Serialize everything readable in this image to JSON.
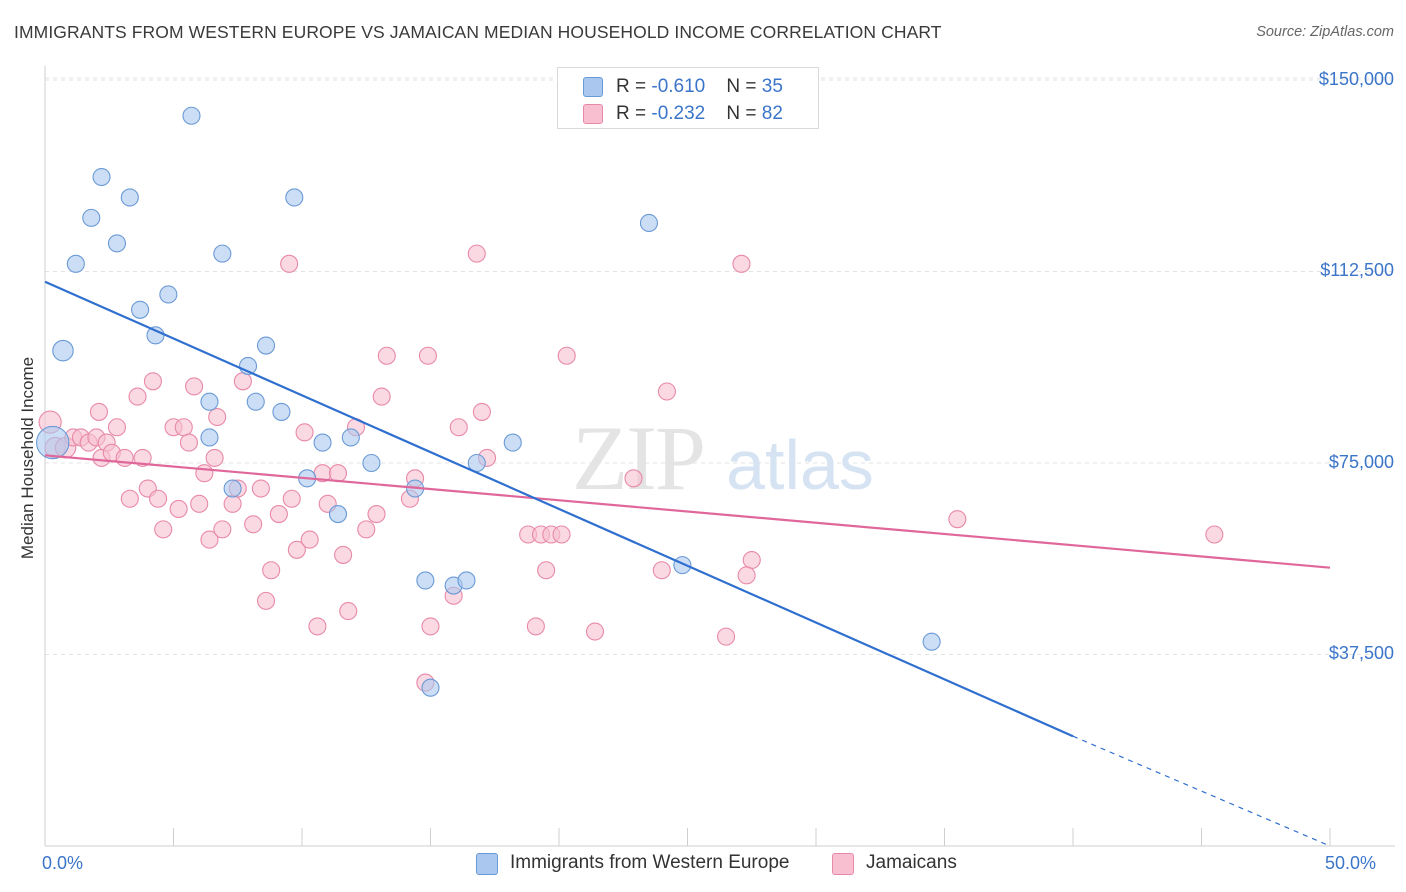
{
  "title": "IMMIGRANTS FROM WESTERN EUROPE VS JAMAICAN MEDIAN HOUSEHOLD INCOME CORRELATION CHART",
  "source": "Source: ZipAtlas.com",
  "watermark": {
    "zip": "ZIP",
    "atlas": "atlas"
  },
  "colors": {
    "blue_fill": "#aac8ef",
    "blue_stroke": "#6a9ad6",
    "blue_line": "#2f6fcf",
    "pink_fill": "#f7bfd0",
    "pink_stroke": "#e889a8",
    "pink_line": "#e0679a",
    "axis_label": "#3b75c9",
    "grid": "#e3e3e3"
  },
  "legend": {
    "rows": [
      {
        "r_label": "R = ",
        "r_value": "-0.610",
        "n_label": "N = ",
        "n_value": "35"
      },
      {
        "r_label": "R = ",
        "r_value": "-0.232",
        "n_label": "N = ",
        "n_value": "82"
      }
    ]
  },
  "chart_data": {
    "type": "scatter",
    "title": "IMMIGRANTS FROM WESTERN EUROPE VS JAMAICAN MEDIAN HOUSEHOLD INCOME CORRELATION CHART",
    "xlabel": "",
    "ylabel": "Median Household Income",
    "xlim": [
      0,
      50
    ],
    "ylim": [
      0,
      155000
    ],
    "x_tick_labels": [
      "0.0%",
      "50.0%"
    ],
    "y_ticks": [
      37500,
      75000,
      112500,
      150000
    ],
    "y_tick_labels": [
      "$37,500",
      "$75,000",
      "$112,500",
      "$150,000"
    ],
    "grid": true,
    "legend_position": "top-center",
    "series": [
      {
        "name": "Immigrants from Western Europe",
        "color": "#aac8ef",
        "points": [
          [
            0.3,
            79000,
            1.9
          ],
          [
            0.7,
            97000,
            1.2
          ],
          [
            1.2,
            114000,
            1
          ],
          [
            1.8,
            123000,
            1
          ],
          [
            2.2,
            131000,
            1
          ],
          [
            2.8,
            118000,
            1
          ],
          [
            3.3,
            127000,
            1
          ],
          [
            3.7,
            105000,
            1
          ],
          [
            4.3,
            100000,
            1
          ],
          [
            4.8,
            108000,
            1
          ],
          [
            5.7,
            143000,
            1
          ],
          [
            6.4,
            87000,
            1
          ],
          [
            6.4,
            80000,
            1
          ],
          [
            6.9,
            116000,
            1
          ],
          [
            7.3,
            70000,
            1
          ],
          [
            8.2,
            87000,
            1
          ],
          [
            7.9,
            94000,
            1
          ],
          [
            8.6,
            98000,
            1
          ],
          [
            9.2,
            85000,
            1
          ],
          [
            9.7,
            127000,
            1
          ],
          [
            10.2,
            72000,
            1
          ],
          [
            10.8,
            79000,
            1
          ],
          [
            11.4,
            65000,
            1
          ],
          [
            11.9,
            80000,
            1
          ],
          [
            12.7,
            75000,
            1
          ],
          [
            14.4,
            70000,
            1
          ],
          [
            14.8,
            52000,
            1
          ],
          [
            15.0,
            31000,
            1
          ],
          [
            15.9,
            51000,
            1
          ],
          [
            16.4,
            52000,
            1
          ],
          [
            16.8,
            75000,
            1
          ],
          [
            18.2,
            79000,
            1
          ],
          [
            23.5,
            122000,
            1
          ],
          [
            24.8,
            55000,
            1
          ],
          [
            34.5,
            40000,
            1
          ]
        ]
      },
      {
        "name": "Jamaicans",
        "color": "#f7bfd0",
        "points": [
          [
            0.2,
            83000,
            1.3
          ],
          [
            0.4,
            78000,
            1.2
          ],
          [
            0.8,
            78000,
            1.2
          ],
          [
            1.1,
            80000,
            1
          ],
          [
            1.4,
            80000,
            1
          ],
          [
            1.7,
            79000,
            1
          ],
          [
            2.0,
            80000,
            1
          ],
          [
            2.1,
            85000,
            1
          ],
          [
            2.2,
            76000,
            1
          ],
          [
            2.4,
            79000,
            1
          ],
          [
            2.6,
            77000,
            1
          ],
          [
            2.8,
            82000,
            1
          ],
          [
            3.1,
            76000,
            1
          ],
          [
            3.3,
            68000,
            1
          ],
          [
            3.6,
            88000,
            1
          ],
          [
            3.8,
            76000,
            1
          ],
          [
            4.0,
            70000,
            1
          ],
          [
            4.2,
            91000,
            1
          ],
          [
            4.4,
            68000,
            1
          ],
          [
            4.6,
            62000,
            1
          ],
          [
            5.0,
            82000,
            1
          ],
          [
            5.2,
            66000,
            1
          ],
          [
            5.4,
            82000,
            1
          ],
          [
            5.6,
            79000,
            1
          ],
          [
            5.8,
            90000,
            1
          ],
          [
            6.0,
            67000,
            1
          ],
          [
            6.2,
            73000,
            1
          ],
          [
            6.4,
            60000,
            1
          ],
          [
            6.7,
            84000,
            1
          ],
          [
            6.9,
            62000,
            1
          ],
          [
            7.3,
            67000,
            1
          ],
          [
            7.5,
            70000,
            1
          ],
          [
            7.7,
            91000,
            1
          ],
          [
            8.1,
            63000,
            1
          ],
          [
            8.4,
            70000,
            1
          ],
          [
            8.6,
            48000,
            1
          ],
          [
            8.8,
            54000,
            1
          ],
          [
            9.1,
            65000,
            1
          ],
          [
            9.5,
            114000,
            1
          ],
          [
            9.6,
            68000,
            1
          ],
          [
            9.8,
            58000,
            1
          ],
          [
            10.1,
            81000,
            1
          ],
          [
            10.3,
            60000,
            1
          ],
          [
            10.6,
            43000,
            1
          ],
          [
            10.8,
            73000,
            1
          ],
          [
            11.0,
            67000,
            1
          ],
          [
            11.4,
            73000,
            1
          ],
          [
            11.6,
            57000,
            1
          ],
          [
            11.8,
            46000,
            1
          ],
          [
            12.1,
            82000,
            1
          ],
          [
            12.5,
            62000,
            1
          ],
          [
            12.9,
            65000,
            1
          ],
          [
            13.1,
            88000,
            1
          ],
          [
            13.3,
            96000,
            1
          ],
          [
            14.2,
            68000,
            1
          ],
          [
            14.4,
            72000,
            1
          ],
          [
            14.8,
            32000,
            1
          ],
          [
            14.9,
            96000,
            1
          ],
          [
            15.0,
            43000,
            1
          ],
          [
            15.9,
            49000,
            1
          ],
          [
            16.1,
            82000,
            1
          ],
          [
            16.8,
            116000,
            1
          ],
          [
            17.0,
            85000,
            1
          ],
          [
            17.2,
            76000,
            1
          ],
          [
            18.8,
            61000,
            1
          ],
          [
            19.1,
            43000,
            1
          ],
          [
            19.3,
            61000,
            1
          ],
          [
            19.5,
            54000,
            1
          ],
          [
            19.7,
            61000,
            1
          ],
          [
            20.1,
            61000,
            1
          ],
          [
            20.3,
            96000,
            1
          ],
          [
            21.4,
            42000,
            1
          ],
          [
            22.9,
            72000,
            1
          ],
          [
            24.0,
            54000,
            1
          ],
          [
            24.2,
            89000,
            1
          ],
          [
            26.5,
            41000,
            1
          ],
          [
            27.1,
            114000,
            1
          ],
          [
            27.5,
            56000,
            1
          ],
          [
            35.5,
            64000,
            1
          ],
          [
            45.5,
            61000,
            1
          ],
          [
            27.3,
            53000,
            1
          ],
          [
            6.6,
            76000,
            1
          ]
        ]
      }
    ],
    "trend_lines": [
      {
        "series": "Immigrants from Western Europe",
        "x": [
          0,
          40
        ],
        "y": [
          110500,
          21500
        ],
        "dashed_extension": {
          "x": [
            40,
            50
          ],
          "y": [
            21500,
            -700
          ]
        }
      },
      {
        "series": "Jamaicans",
        "x": [
          0,
          50
        ],
        "y": [
          76500,
          54500
        ]
      }
    ]
  }
}
